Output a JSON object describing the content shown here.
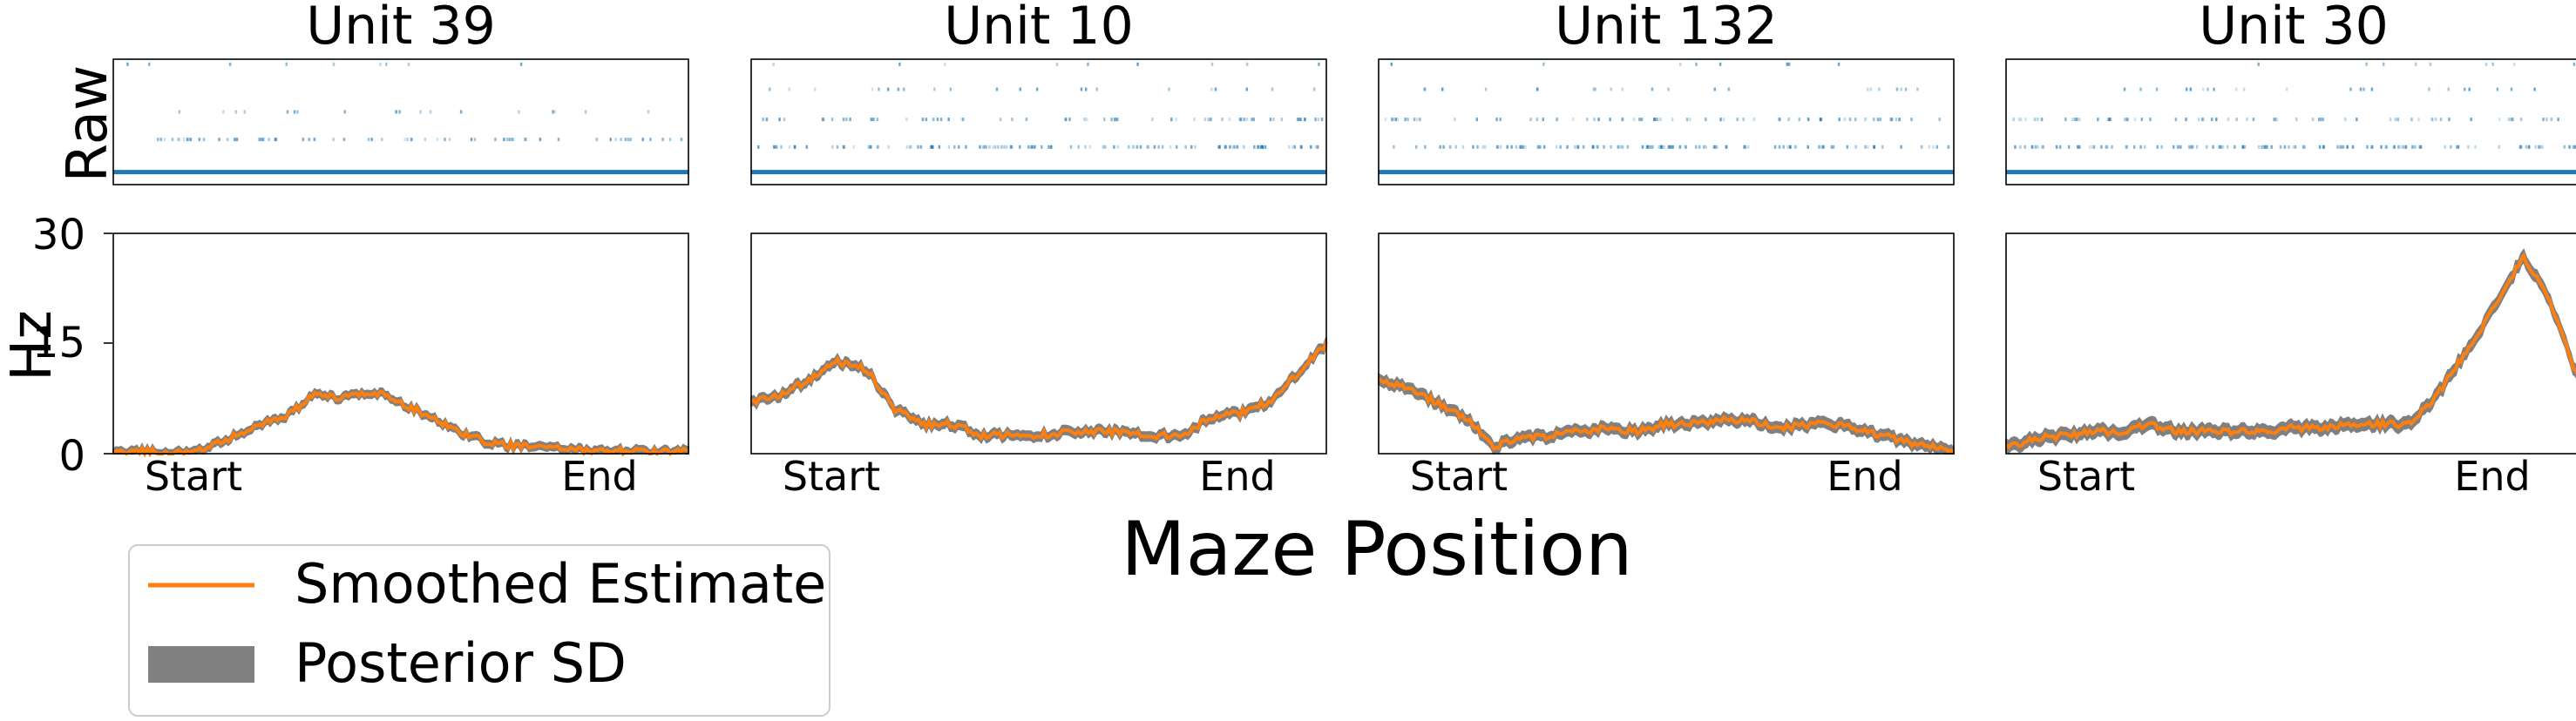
{
  "figure": {
    "xlabel": "Maze Position",
    "raw_ylabel": "Raw",
    "hz_ylabel": "Hz",
    "hz_yticks": [
      "0",
      "15",
      "30"
    ],
    "legend": {
      "placement": "bottom-left",
      "items": [
        {
          "label": "Smoothed Estimate",
          "kind": "line",
          "color": "#ff7f0e"
        },
        {
          "label": "Posterior SD",
          "kind": "patch",
          "color": "#808080"
        }
      ]
    },
    "colors": {
      "line": "#ff7f0e",
      "band": "#808080",
      "raster": "#1f77b4"
    }
  },
  "chart_data": [
    {
      "type": "line",
      "title": "Unit 39",
      "xlabel": "",
      "ylabel": "Hz",
      "x_ticks": [
        "Start",
        "End"
      ],
      "xlim": [
        0,
        1
      ],
      "ylim": [
        0,
        30
      ],
      "grid": false,
      "series": [
        {
          "name": "Smoothed Estimate",
          "x": [
            0,
            0.05,
            0.1,
            0.15,
            0.2,
            0.25,
            0.3,
            0.35,
            0.4,
            0.45,
            0.5,
            0.55,
            0.6,
            0.65,
            0.7,
            0.75,
            0.8,
            0.85,
            0.9,
            0.95,
            1
          ],
          "values": [
            0,
            0.5,
            0,
            0.5,
            2,
            4,
            5,
            8,
            7.5,
            8.5,
            7,
            5,
            3,
            1.5,
            1,
            1,
            0.5,
            0.5,
            0.3,
            0.2,
            0.4
          ]
        }
      ],
      "band_sd": 0.5,
      "raster_rows": [
        {
          "level": 0.1,
          "density": 1.0
        },
        {
          "level": 0.36,
          "density": 0.3
        },
        {
          "level": 0.58,
          "density": 0.08
        },
        {
          "level": 0.96,
          "density": 0.04
        }
      ]
    },
    {
      "type": "line",
      "title": "Unit 10",
      "xlabel": "",
      "ylabel": "Hz",
      "x_ticks": [
        "Start",
        "End"
      ],
      "xlim": [
        0,
        1
      ],
      "ylim": [
        0,
        30
      ],
      "grid": false,
      "series": [
        {
          "name": "Smoothed Estimate",
          "x": [
            0,
            0.05,
            0.1,
            0.15,
            0.2,
            0.25,
            0.3,
            0.35,
            0.4,
            0.45,
            0.5,
            0.55,
            0.6,
            0.65,
            0.7,
            0.75,
            0.8,
            0.85,
            0.9,
            0.95,
            1
          ],
          "values": [
            7,
            8,
            10,
            12.5,
            11.5,
            6,
            4,
            4,
            2.5,
            2.5,
            2.5,
            3,
            3,
            3,
            2.5,
            2.5,
            5,
            5.5,
            7,
            11,
            15
          ]
        }
      ],
      "band_sd": 0.6,
      "raster_rows": [
        {
          "level": 0.1,
          "density": 1.0
        },
        {
          "level": 0.3,
          "density": 0.5
        },
        {
          "level": 0.52,
          "density": 0.3
        },
        {
          "level": 0.76,
          "density": 0.1
        },
        {
          "level": 0.96,
          "density": 0.04
        }
      ]
    },
    {
      "type": "line",
      "title": "Unit 132",
      "xlabel": "",
      "ylabel": "Hz",
      "x_ticks": [
        "Start",
        "End"
      ],
      "xlim": [
        0,
        1
      ],
      "ylim": [
        0,
        30
      ],
      "grid": false,
      "series": [
        {
          "name": "Smoothed Estimate",
          "x": [
            0,
            0.05,
            0.1,
            0.15,
            0.2,
            0.25,
            0.3,
            0.35,
            0.4,
            0.45,
            0.5,
            0.55,
            0.6,
            0.65,
            0.7,
            0.75,
            0.8,
            0.85,
            0.9,
            0.95,
            1
          ],
          "values": [
            10,
            9,
            7,
            5,
            1,
            2,
            2.5,
            3,
            3.5,
            3,
            4,
            4,
            4.5,
            4.5,
            3.5,
            4,
            4,
            3,
            2,
            1,
            0.5
          ]
        }
      ],
      "band_sd": 0.7,
      "raster_rows": [
        {
          "level": 0.1,
          "density": 1.0
        },
        {
          "level": 0.3,
          "density": 0.5
        },
        {
          "level": 0.52,
          "density": 0.3
        },
        {
          "level": 0.76,
          "density": 0.1
        },
        {
          "level": 0.96,
          "density": 0.04
        }
      ]
    },
    {
      "type": "line",
      "title": "Unit 30",
      "xlabel": "",
      "ylabel": "Hz",
      "x_ticks": [
        "Start",
        "End"
      ],
      "xlim": [
        0,
        1
      ],
      "ylim": [
        0,
        30
      ],
      "grid": false,
      "series": [
        {
          "name": "Smoothed Estimate",
          "x": [
            0,
            0.05,
            0.1,
            0.15,
            0.2,
            0.25,
            0.3,
            0.35,
            0.4,
            0.45,
            0.5,
            0.55,
            0.6,
            0.65,
            0.7,
            0.75,
            0.8,
            0.85,
            0.9,
            0.95,
            1
          ],
          "values": [
            1,
            2,
            2.5,
            3,
            3,
            4,
            3,
            3,
            3,
            3,
            3.5,
            3.5,
            4,
            4,
            4,
            8,
            14,
            20,
            27,
            20,
            9
          ]
        }
      ],
      "band_sd": 0.8,
      "raster_rows": [
        {
          "level": 0.1,
          "density": 1.0
        },
        {
          "level": 0.3,
          "density": 0.5
        },
        {
          "level": 0.52,
          "density": 0.3
        },
        {
          "level": 0.76,
          "density": 0.1
        },
        {
          "level": 0.96,
          "density": 0.04
        }
      ]
    }
  ]
}
